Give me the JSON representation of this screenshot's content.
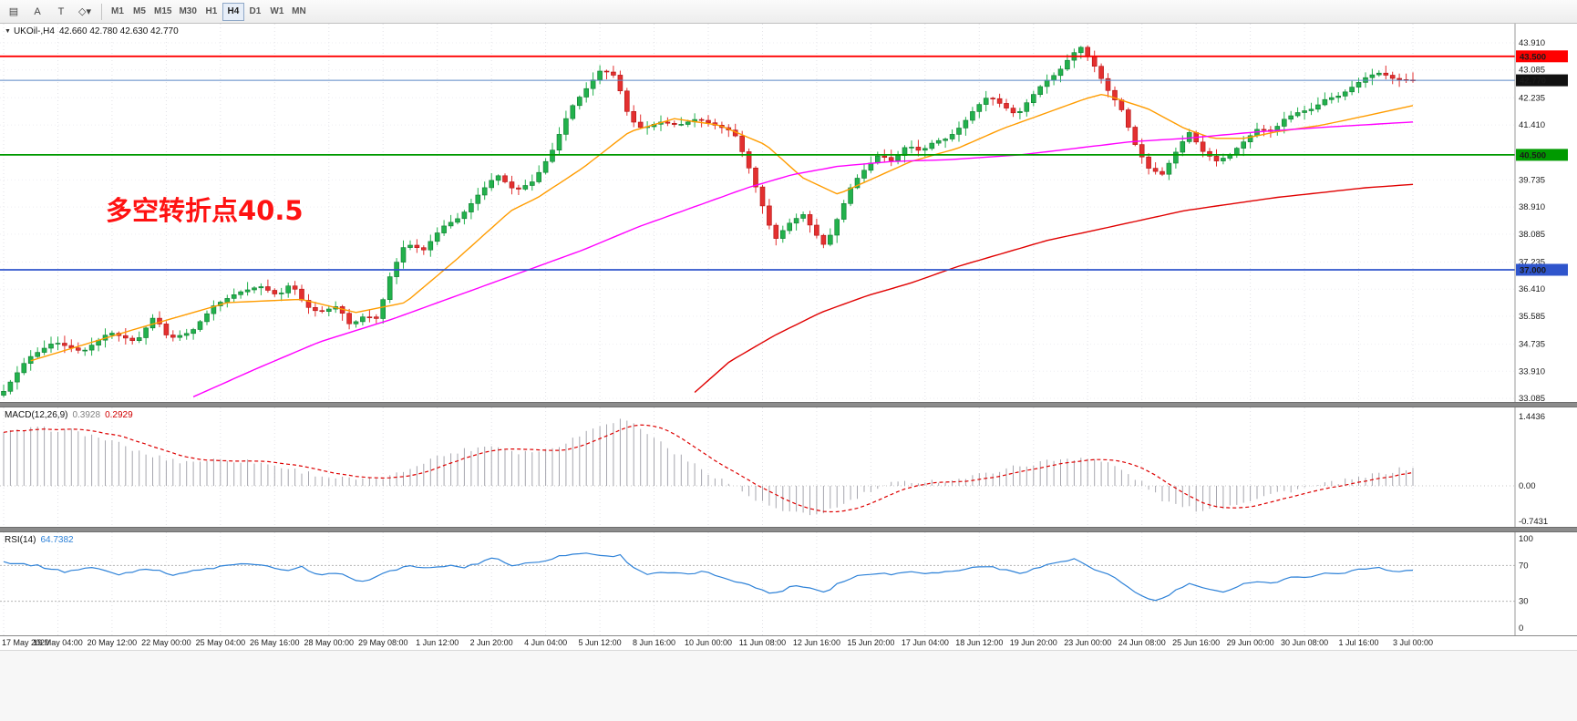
{
  "toolbar": {
    "icons": [
      {
        "name": "charts-menu-icon",
        "glyph": "▤"
      },
      {
        "name": "annotation-a-icon",
        "glyph": "A"
      },
      {
        "name": "text-label-icon",
        "glyph": "T"
      },
      {
        "name": "shapes-dropdown-icon",
        "glyph": "◇▾"
      }
    ],
    "timeframes": [
      "M1",
      "M5",
      "M15",
      "M30",
      "H1",
      "H4",
      "D1",
      "W1",
      "MN"
    ],
    "active_timeframe": "H4"
  },
  "chart_header": {
    "symbol": "UKOil-,H4",
    "ohlc": "42.660 42.780 42.630 42.770"
  },
  "macd": {
    "label": "MACD(12,26,9)",
    "main_value": "0.3928",
    "signal_value": "0.2929"
  },
  "rsi": {
    "label": "RSI(14)",
    "value": "64.7382"
  },
  "annotation": {
    "text": "多空转折点40.5",
    "color": "#ff1212"
  },
  "chart_data": {
    "type": "candlestick",
    "symbol": "UKOil-",
    "timeframe": "H4",
    "title": "UKOil- H4 with MACD(12,26,9) and RSI(14)",
    "price_min": 33.085,
    "price_max": 43.91,
    "bars": 209,
    "y_labels": [
      43.91,
      43.085,
      42.235,
      41.41,
      39.735,
      38.91,
      38.085,
      37.235,
      36.41,
      35.585,
      34.735,
      33.91,
      33.085
    ],
    "hlines": [
      {
        "value": 43.5,
        "label": "43.500",
        "color": "#ff0000"
      },
      {
        "value": 40.5,
        "label": "40.500",
        "color": "#009a00"
      },
      {
        "value": 37.0,
        "label": "37.000",
        "color": "#2f55cc"
      }
    ],
    "current_price": {
      "value": 42.77,
      "label": "42.770",
      "line_color": "#5b87c5",
      "badge_color": "#111111"
    },
    "colors": {
      "up": "#22b14c",
      "up_border": "#0e7a30",
      "down": "#e33030",
      "down_border": "#b31212"
    },
    "price_anchors": [
      [
        0.0,
        33.3
      ],
      [
        0.017,
        34.3
      ],
      [
        0.036,
        34.8
      ],
      [
        0.056,
        34.5
      ],
      [
        0.075,
        35.1
      ],
      [
        0.094,
        34.8
      ],
      [
        0.107,
        35.6
      ],
      [
        0.117,
        34.9
      ],
      [
        0.133,
        35.1
      ],
      [
        0.149,
        35.9
      ],
      [
        0.166,
        36.3
      ],
      [
        0.182,
        36.5
      ],
      [
        0.195,
        36.2
      ],
      [
        0.204,
        36.6
      ],
      [
        0.214,
        35.9
      ],
      [
        0.224,
        35.7
      ],
      [
        0.237,
        35.9
      ],
      [
        0.246,
        35.3
      ],
      [
        0.256,
        35.6
      ],
      [
        0.266,
        35.5
      ],
      [
        0.272,
        36.6
      ],
      [
        0.285,
        37.8
      ],
      [
        0.298,
        37.6
      ],
      [
        0.311,
        38.3
      ],
      [
        0.324,
        38.6
      ],
      [
        0.337,
        39.3
      ],
      [
        0.35,
        39.9
      ],
      [
        0.363,
        39.4
      ],
      [
        0.376,
        39.7
      ],
      [
        0.389,
        40.6
      ],
      [
        0.402,
        41.9
      ],
      [
        0.415,
        42.6
      ],
      [
        0.424,
        43.1
      ],
      [
        0.434,
        42.9
      ],
      [
        0.444,
        41.6
      ],
      [
        0.453,
        41.3
      ],
      [
        0.466,
        41.5
      ],
      [
        0.479,
        41.4
      ],
      [
        0.492,
        41.6
      ],
      [
        0.505,
        41.4
      ],
      [
        0.518,
        41.2
      ],
      [
        0.528,
        40.2
      ],
      [
        0.538,
        39.0
      ],
      [
        0.547,
        37.9
      ],
      [
        0.557,
        38.4
      ],
      [
        0.567,
        38.7
      ],
      [
        0.576,
        38.1
      ],
      [
        0.583,
        37.7
      ],
      [
        0.592,
        38.6
      ],
      [
        0.602,
        39.6
      ],
      [
        0.612,
        40.1
      ],
      [
        0.621,
        40.5
      ],
      [
        0.631,
        40.3
      ],
      [
        0.641,
        40.8
      ],
      [
        0.651,
        40.6
      ],
      [
        0.66,
        40.9
      ],
      [
        0.67,
        41.0
      ],
      [
        0.68,
        41.4
      ],
      [
        0.689,
        41.9
      ],
      [
        0.699,
        42.3
      ],
      [
        0.709,
        42.0
      ],
      [
        0.719,
        41.7
      ],
      [
        0.728,
        42.2
      ],
      [
        0.738,
        42.7
      ],
      [
        0.748,
        43.0
      ],
      [
        0.757,
        43.5
      ],
      [
        0.764,
        43.8
      ],
      [
        0.774,
        43.2
      ],
      [
        0.783,
        42.5
      ],
      [
        0.793,
        41.9
      ],
      [
        0.803,
        40.8
      ],
      [
        0.812,
        40.1
      ],
      [
        0.822,
        39.9
      ],
      [
        0.832,
        40.6
      ],
      [
        0.841,
        41.2
      ],
      [
        0.851,
        40.6
      ],
      [
        0.861,
        40.3
      ],
      [
        0.87,
        40.5
      ],
      [
        0.88,
        40.9
      ],
      [
        0.89,
        41.3
      ],
      [
        0.9,
        41.2
      ],
      [
        0.909,
        41.6
      ],
      [
        0.919,
        41.8
      ],
      [
        0.929,
        41.9
      ],
      [
        0.938,
        42.2
      ],
      [
        0.948,
        42.3
      ],
      [
        0.958,
        42.6
      ],
      [
        0.968,
        42.9
      ],
      [
        0.977,
        43.0
      ],
      [
        0.987,
        42.8
      ],
      [
        1.0,
        42.77
      ]
    ],
    "mas": [
      {
        "name": "ma-fast-orange",
        "color": "#ff9c00",
        "anchors": [
          [
            0.017,
            34.2
          ],
          [
            0.094,
            35.2
          ],
          [
            0.159,
            36.0
          ],
          [
            0.211,
            36.1
          ],
          [
            0.25,
            35.7
          ],
          [
            0.285,
            36.0
          ],
          [
            0.321,
            37.3
          ],
          [
            0.36,
            38.8
          ],
          [
            0.379,
            39.2
          ],
          [
            0.411,
            40.1
          ],
          [
            0.444,
            41.2
          ],
          [
            0.476,
            41.6
          ],
          [
            0.508,
            41.4
          ],
          [
            0.541,
            40.8
          ],
          [
            0.567,
            39.8
          ],
          [
            0.592,
            39.3
          ],
          [
            0.618,
            39.8
          ],
          [
            0.644,
            40.3
          ],
          [
            0.677,
            40.7
          ],
          [
            0.709,
            41.3
          ],
          [
            0.735,
            41.7
          ],
          [
            0.767,
            42.2
          ],
          [
            0.78,
            42.35
          ],
          [
            0.812,
            41.9
          ],
          [
            0.838,
            41.3
          ],
          [
            0.858,
            41.0
          ],
          [
            0.88,
            41.0
          ],
          [
            0.903,
            41.2
          ],
          [
            0.935,
            41.4
          ],
          [
            0.968,
            41.7
          ],
          [
            1.0,
            42.0
          ]
        ]
      },
      {
        "name": "ma-mid-magenta",
        "color": "#ff00ff",
        "anchors": [
          [
            0.133,
            33.1
          ],
          [
            0.18,
            34.0
          ],
          [
            0.224,
            34.8
          ],
          [
            0.276,
            35.5
          ],
          [
            0.321,
            36.2
          ],
          [
            0.366,
            36.9
          ],
          [
            0.411,
            37.6
          ],
          [
            0.45,
            38.3
          ],
          [
            0.489,
            38.9
          ],
          [
            0.528,
            39.5
          ],
          [
            0.56,
            39.9
          ],
          [
            0.592,
            40.15
          ],
          [
            0.631,
            40.3
          ],
          [
            0.67,
            40.35
          ],
          [
            0.722,
            40.5
          ],
          [
            0.761,
            40.7
          ],
          [
            0.8,
            40.9
          ],
          [
            0.838,
            41.0
          ],
          [
            0.89,
            41.2
          ],
          [
            0.941,
            41.35
          ],
          [
            1.0,
            41.5
          ]
        ]
      },
      {
        "name": "ma-slow-red",
        "color": "#e00000",
        "anchors": [
          [
            0.486,
            33.1
          ],
          [
            0.515,
            34.2
          ],
          [
            0.547,
            35.0
          ],
          [
            0.58,
            35.7
          ],
          [
            0.612,
            36.2
          ],
          [
            0.644,
            36.6
          ],
          [
            0.677,
            37.1
          ],
          [
            0.709,
            37.5
          ],
          [
            0.741,
            37.9
          ],
          [
            0.774,
            38.2
          ],
          [
            0.806,
            38.5
          ],
          [
            0.838,
            38.8
          ],
          [
            0.87,
            39.0
          ],
          [
            0.903,
            39.2
          ],
          [
            0.935,
            39.35
          ],
          [
            0.967,
            39.5
          ],
          [
            1.0,
            39.6
          ]
        ]
      }
    ],
    "x_labels": [
      "17 May 2020",
      "19 May 04:00",
      "20 May 12:00",
      "22 May 00:00",
      "25 May 04:00",
      "26 May 16:00",
      "28 May 00:00",
      "29 May 08:00",
      "1 Jun 12:00",
      "2 Jun 20:00",
      "4 Jun 04:00",
      "5 Jun 12:00",
      "8 Jun 16:00",
      "10 Jun 00:00",
      "11 Jun 08:00",
      "12 Jun 16:00",
      "15 Jun 20:00",
      "17 Jun 04:00",
      "18 Jun 12:00",
      "19 Jun 20:00",
      "23 Jun 00:00",
      "24 Jun 08:00",
      "25 Jun 16:00",
      "29 Jun 00:00",
      "30 Jun 08:00",
      "1 Jul 16:00",
      "3 Jul 00:00"
    ],
    "macd": {
      "max": 1.4436,
      "min": -0.7431,
      "axis": [
        {
          "v": 1.4436,
          "t": "1.4436"
        },
        {
          "v": 0,
          "t": "0.00"
        },
        {
          "v": -0.7431,
          "t": "-0.7431"
        }
      ],
      "anchors": [
        [
          0.0,
          1.1
        ],
        [
          0.023,
          1.2
        ],
        [
          0.049,
          1.15
        ],
        [
          0.075,
          0.95
        ],
        [
          0.101,
          0.65
        ],
        [
          0.127,
          0.5
        ],
        [
          0.153,
          0.55
        ],
        [
          0.179,
          0.5
        ],
        [
          0.204,
          0.35
        ],
        [
          0.23,
          0.18
        ],
        [
          0.256,
          0.12
        ],
        [
          0.276,
          0.2
        ],
        [
          0.301,
          0.55
        ],
        [
          0.327,
          0.75
        ],
        [
          0.347,
          0.85
        ],
        [
          0.366,
          0.7
        ],
        [
          0.386,
          0.75
        ],
        [
          0.405,
          1.0
        ],
        [
          0.424,
          1.3
        ],
        [
          0.441,
          1.4
        ],
        [
          0.457,
          1.1
        ],
        [
          0.476,
          0.7
        ],
        [
          0.495,
          0.35
        ],
        [
          0.515,
          0.05
        ],
        [
          0.534,
          -0.3
        ],
        [
          0.554,
          -0.55
        ],
        [
          0.573,
          -0.62
        ],
        [
          0.592,
          -0.45
        ],
        [
          0.612,
          -0.15
        ],
        [
          0.631,
          0.05
        ],
        [
          0.651,
          0.1
        ],
        [
          0.67,
          0.1
        ],
        [
          0.689,
          0.2
        ],
        [
          0.709,
          0.35
        ],
        [
          0.728,
          0.45
        ],
        [
          0.748,
          0.55
        ],
        [
          0.767,
          0.6
        ],
        [
          0.786,
          0.45
        ],
        [
          0.806,
          0.1
        ],
        [
          0.825,
          -0.35
        ],
        [
          0.845,
          -0.5
        ],
        [
          0.864,
          -0.45
        ],
        [
          0.883,
          -0.3
        ],
        [
          0.903,
          -0.15
        ],
        [
          0.922,
          -0.05
        ],
        [
          0.941,
          0.05
        ],
        [
          0.961,
          0.15
        ],
        [
          0.98,
          0.28
        ],
        [
          1.0,
          0.39
        ]
      ]
    },
    "rsi": {
      "levels": [
        70,
        30
      ],
      "axis": [
        {
          "v": 100,
          "t": "100"
        },
        {
          "v": 70,
          "t": "70"
        },
        {
          "v": 30,
          "t": "30"
        },
        {
          "v": 0,
          "t": "0"
        }
      ],
      "anchors": [
        [
          0.0,
          74
        ],
        [
          0.023,
          70
        ],
        [
          0.043,
          63
        ],
        [
          0.062,
          68
        ],
        [
          0.082,
          60
        ],
        [
          0.101,
          67
        ],
        [
          0.12,
          60
        ],
        [
          0.14,
          65
        ],
        [
          0.159,
          70
        ],
        [
          0.179,
          72
        ],
        [
          0.198,
          64
        ],
        [
          0.211,
          69
        ],
        [
          0.224,
          58
        ],
        [
          0.237,
          62
        ],
        [
          0.25,
          52
        ],
        [
          0.263,
          56
        ],
        [
          0.276,
          65
        ],
        [
          0.289,
          70
        ],
        [
          0.301,
          66
        ],
        [
          0.314,
          70
        ],
        [
          0.327,
          68
        ],
        [
          0.34,
          74
        ],
        [
          0.347,
          80
        ],
        [
          0.36,
          70
        ],
        [
          0.379,
          74
        ],
        [
          0.399,
          82
        ],
        [
          0.415,
          84
        ],
        [
          0.428,
          80
        ],
        [
          0.437,
          82
        ],
        [
          0.447,
          68
        ],
        [
          0.457,
          60
        ],
        [
          0.47,
          62
        ],
        [
          0.483,
          60
        ],
        [
          0.496,
          63
        ],
        [
          0.508,
          58
        ],
        [
          0.521,
          52
        ],
        [
          0.534,
          45
        ],
        [
          0.547,
          38
        ],
        [
          0.56,
          48
        ],
        [
          0.573,
          45
        ],
        [
          0.583,
          40
        ],
        [
          0.592,
          50
        ],
        [
          0.605,
          58
        ],
        [
          0.618,
          62
        ],
        [
          0.631,
          60
        ],
        [
          0.644,
          64
        ],
        [
          0.657,
          61
        ],
        [
          0.67,
          63
        ],
        [
          0.683,
          66
        ],
        [
          0.696,
          70
        ],
        [
          0.709,
          65
        ],
        [
          0.722,
          62
        ],
        [
          0.735,
          68
        ],
        [
          0.748,
          74
        ],
        [
          0.761,
          77
        ],
        [
          0.774,
          65
        ],
        [
          0.786,
          58
        ],
        [
          0.799,
          45
        ],
        [
          0.809,
          34
        ],
        [
          0.819,
          30
        ],
        [
          0.832,
          42
        ],
        [
          0.841,
          50
        ],
        [
          0.851,
          44
        ],
        [
          0.864,
          40
        ],
        [
          0.874,
          46
        ],
        [
          0.887,
          53
        ],
        [
          0.9,
          50
        ],
        [
          0.913,
          56
        ],
        [
          0.926,
          58
        ],
        [
          0.939,
          61
        ],
        [
          0.951,
          62
        ],
        [
          0.964,
          66
        ],
        [
          0.977,
          68
        ],
        [
          0.987,
          63
        ],
        [
          1.0,
          64.7
        ]
      ]
    }
  }
}
